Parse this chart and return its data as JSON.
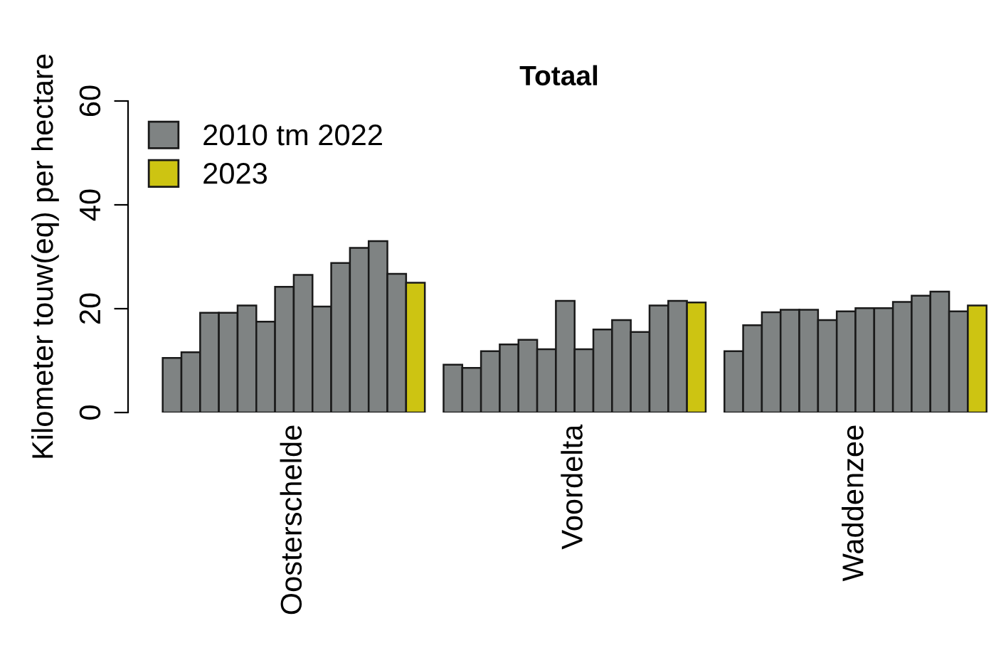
{
  "chart_data": {
    "type": "bar",
    "title": "Totaal",
    "ylabel": "Kilometer touw(eq) per hectare",
    "categories": [
      "Oosterschelde",
      "Voordelta",
      "Waddenzee"
    ],
    "series": [
      {
        "name": "2010 tm 2022",
        "color": "#7f8383",
        "values": [
          10.5,
          9.2,
          11.8
        ]
      },
      {
        "color": "#7f8383",
        "values": [
          11.6,
          8.6,
          16.8
        ]
      },
      {
        "color": "#7f8383",
        "values": [
          19.2,
          11.8,
          19.3
        ]
      },
      {
        "color": "#7f8383",
        "values": [
          19.2,
          13.1,
          19.8
        ]
      },
      {
        "color": "#7f8383",
        "values": [
          20.6,
          14.0,
          19.8
        ]
      },
      {
        "color": "#7f8383",
        "values": [
          17.5,
          12.2,
          17.8
        ]
      },
      {
        "color": "#7f8383",
        "values": [
          24.2,
          21.5,
          19.5
        ]
      },
      {
        "color": "#7f8383",
        "values": [
          26.5,
          12.2,
          20.1
        ]
      },
      {
        "color": "#7f8383",
        "values": [
          20.4,
          16.0,
          20.1
        ]
      },
      {
        "color": "#7f8383",
        "values": [
          28.8,
          17.8,
          21.3
        ]
      },
      {
        "color": "#7f8383",
        "values": [
          31.7,
          15.5,
          22.5
        ]
      },
      {
        "color": "#7f8383",
        "values": [
          33.0,
          20.6,
          23.3
        ]
      },
      {
        "color": "#7f8383",
        "values": [
          26.7,
          21.5,
          19.5
        ]
      },
      {
        "name": "2023",
        "color": "#cdc412",
        "values": [
          25.0,
          21.2,
          20.6
        ]
      }
    ],
    "ylim": [
      0,
      60
    ],
    "yticks": [
      0,
      20,
      40,
      60
    ],
    "grid": false,
    "legend": "top left"
  }
}
